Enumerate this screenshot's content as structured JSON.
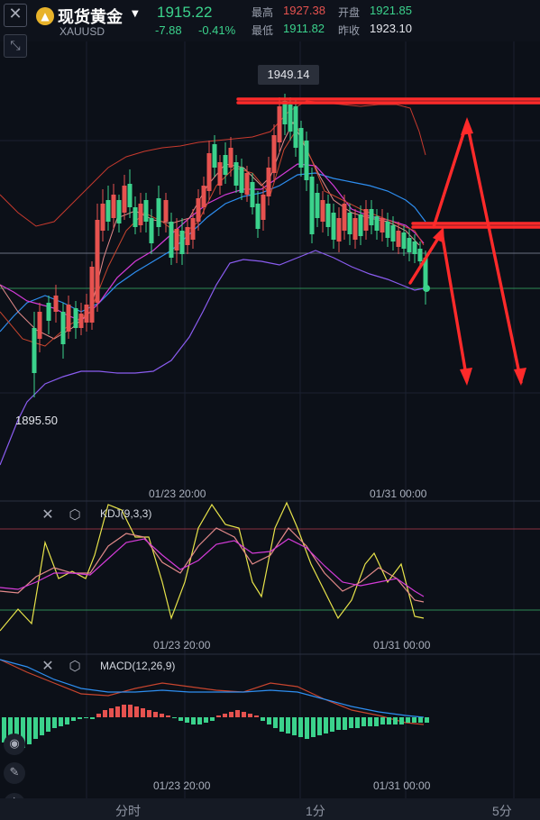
{
  "header": {
    "close_icon": "close-icon",
    "instrument_icon": "gold-bars-icon",
    "instrument_name": "现货黄金",
    "dropdown_icon": "chevron-down-icon",
    "symbol": "XAUUSD",
    "last_price": "1915.22",
    "change": "-7.88",
    "change_percent": "-0.41%",
    "stats": {
      "high_label": "最高",
      "high_value": "1927.38",
      "open_label": "开盘",
      "open_value": "1921.85",
      "low_label": "最低",
      "low_value": "1911.82",
      "prev_close_label": "昨收",
      "prev_close_value": "1923.10"
    }
  },
  "colors": {
    "up": "#e6524f",
    "down": "#3bd28c",
    "ma_blue": "#2e8ef0",
    "ma_magenta": "#d43bd8",
    "boll_purple": "#8a5cf0",
    "kdj_yellow": "#e8e34a",
    "annotation_red": "#ff2a2a"
  },
  "main_chart": {
    "high_marker": "1949.14",
    "low_marker": "1895.50",
    "time_labels": [
      "01/23 20:00",
      "01/31 00:00"
    ]
  },
  "kdj": {
    "title": "KDJ(9,3,3)",
    "time_labels": [
      "01/23 20:00",
      "01/31 00:00"
    ]
  },
  "macd": {
    "title": "MACD(12,26,9)",
    "time_labels": [
      "01/23 20:00",
      "01/31 00:00"
    ]
  },
  "tools": {
    "expand_icon": "expand-icon",
    "toggle_icon": "eye-toggle-icon",
    "draw_icon": "pencil-icon",
    "indicator_icon": "indicator-icon"
  },
  "bottom_tabs": [
    "分时",
    "1分",
    "5分"
  ]
}
